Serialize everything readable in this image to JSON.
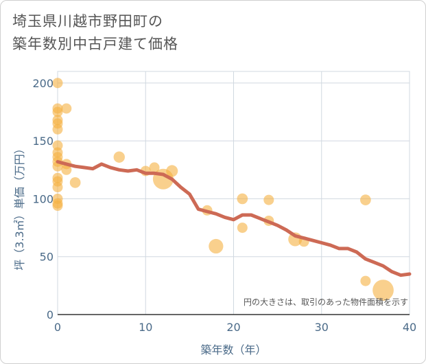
{
  "title": {
    "line1": "埼玉県川越市野田町の",
    "line2": "築年数別中古戸建て価格"
  },
  "note": "円の大きさは、取引のあった物件面積を示す",
  "chart_data": {
    "type": "scatter",
    "xlabel": "築年数（年）",
    "ylabel": "坪（3.3㎡）単価（万円）",
    "xlim": [
      0,
      40
    ],
    "ylim": [
      0,
      210
    ],
    "xticks": [
      0,
      10,
      20,
      30,
      40
    ],
    "yticks": [
      0,
      50,
      100,
      150,
      200
    ],
    "grid": true,
    "colors": {
      "bubble": "#f5b041",
      "trend": "#cd6a55",
      "grid": "#d0d8e0",
      "axis": "#4a6a88"
    },
    "series": [
      {
        "kind": "bubble",
        "points": [
          {
            "x": 0,
            "y": 200,
            "s": 1
          },
          {
            "x": 0,
            "y": 178,
            "s": 1
          },
          {
            "x": 0,
            "y": 175,
            "s": 1
          },
          {
            "x": 0,
            "y": 168,
            "s": 1
          },
          {
            "x": 0,
            "y": 165,
            "s": 1
          },
          {
            "x": 0,
            "y": 160,
            "s": 1
          },
          {
            "x": 0,
            "y": 146,
            "s": 1
          },
          {
            "x": 0,
            "y": 140,
            "s": 1
          },
          {
            "x": 0,
            "y": 136,
            "s": 1
          },
          {
            "x": 0,
            "y": 132,
            "s": 1
          },
          {
            "x": 0,
            "y": 128,
            "s": 1
          },
          {
            "x": 0,
            "y": 118,
            "s": 1
          },
          {
            "x": 0,
            "y": 115,
            "s": 1
          },
          {
            "x": 0,
            "y": 110,
            "s": 1
          },
          {
            "x": 0,
            "y": 100,
            "s": 1
          },
          {
            "x": 0,
            "y": 96,
            "s": 1
          },
          {
            "x": 0,
            "y": 94,
            "s": 1
          },
          {
            "x": 1,
            "y": 178,
            "s": 1
          },
          {
            "x": 1,
            "y": 130,
            "s": 1
          },
          {
            "x": 1,
            "y": 125,
            "s": 1
          },
          {
            "x": 2,
            "y": 114,
            "s": 1.1
          },
          {
            "x": 7,
            "y": 136,
            "s": 1.2
          },
          {
            "x": 10,
            "y": 124,
            "s": 1
          },
          {
            "x": 11,
            "y": 127,
            "s": 1
          },
          {
            "x": 12,
            "y": 117,
            "s": 4
          },
          {
            "x": 13,
            "y": 124,
            "s": 1.3
          },
          {
            "x": 17,
            "y": 90,
            "s": 1
          },
          {
            "x": 18,
            "y": 59,
            "s": 2
          },
          {
            "x": 21,
            "y": 100,
            "s": 1.1
          },
          {
            "x": 21,
            "y": 75,
            "s": 1
          },
          {
            "x": 24,
            "y": 99,
            "s": 1
          },
          {
            "x": 24,
            "y": 81,
            "s": 1
          },
          {
            "x": 27,
            "y": 65,
            "s": 1.8
          },
          {
            "x": 28,
            "y": 63,
            "s": 1
          },
          {
            "x": 35,
            "y": 99,
            "s": 1.1
          },
          {
            "x": 35,
            "y": 29,
            "s": 1
          },
          {
            "x": 37,
            "y": 21,
            "s": 4.2
          }
        ]
      },
      {
        "kind": "line",
        "points": [
          {
            "x": 0,
            "y": 132
          },
          {
            "x": 1,
            "y": 130
          },
          {
            "x": 2,
            "y": 128
          },
          {
            "x": 3,
            "y": 127
          },
          {
            "x": 4,
            "y": 126
          },
          {
            "x": 5,
            "y": 130
          },
          {
            "x": 6,
            "y": 127
          },
          {
            "x": 7,
            "y": 125
          },
          {
            "x": 8,
            "y": 124
          },
          {
            "x": 9,
            "y": 125
          },
          {
            "x": 10,
            "y": 122
          },
          {
            "x": 11,
            "y": 122
          },
          {
            "x": 12,
            "y": 121
          },
          {
            "x": 13,
            "y": 117
          },
          {
            "x": 14,
            "y": 110
          },
          {
            "x": 15,
            "y": 104
          },
          {
            "x": 16,
            "y": 91
          },
          {
            "x": 17,
            "y": 89
          },
          {
            "x": 18,
            "y": 87
          },
          {
            "x": 19,
            "y": 84
          },
          {
            "x": 20,
            "y": 82
          },
          {
            "x": 21,
            "y": 86
          },
          {
            "x": 22,
            "y": 86
          },
          {
            "x": 23,
            "y": 83
          },
          {
            "x": 24,
            "y": 80
          },
          {
            "x": 25,
            "y": 77
          },
          {
            "x": 26,
            "y": 73
          },
          {
            "x": 27,
            "y": 68
          },
          {
            "x": 28,
            "y": 66
          },
          {
            "x": 29,
            "y": 64
          },
          {
            "x": 30,
            "y": 62
          },
          {
            "x": 31,
            "y": 60
          },
          {
            "x": 32,
            "y": 57
          },
          {
            "x": 33,
            "y": 57
          },
          {
            "x": 34,
            "y": 54
          },
          {
            "x": 35,
            "y": 48
          },
          {
            "x": 36,
            "y": 45
          },
          {
            "x": 37,
            "y": 42
          },
          {
            "x": 38,
            "y": 37
          },
          {
            "x": 39,
            "y": 34
          },
          {
            "x": 40,
            "y": 35
          }
        ]
      }
    ]
  }
}
